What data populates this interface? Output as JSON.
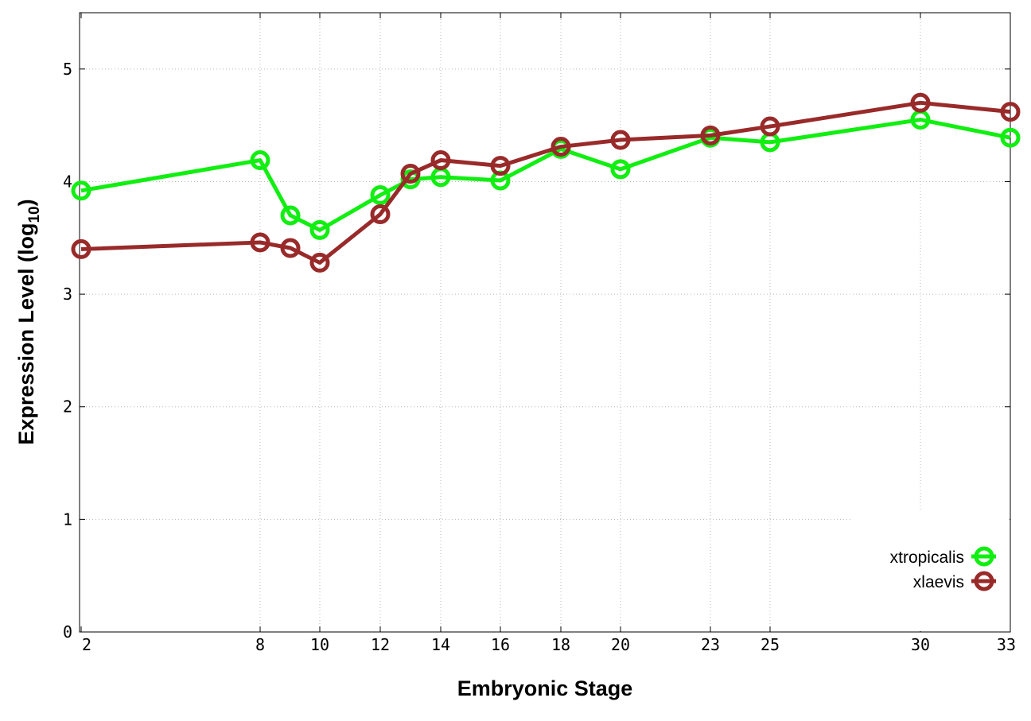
{
  "chart_data": {
    "type": "line",
    "xlabel": "Embryonic Stage",
    "ylabel": "Expression Level (log",
    "ylabel_subscript": "10",
    "ylabel_close": ")",
    "x_ticks": [
      "2",
      "8",
      "10",
      "12",
      "14",
      "16",
      "18",
      "20",
      "23",
      "25",
      "30",
      "33"
    ],
    "y_ticks": [
      "0",
      "1",
      "2",
      "3",
      "4",
      "5"
    ],
    "ylim": [
      0,
      5.5
    ],
    "grid": true,
    "legend_position": "bottom-right",
    "x": [
      "2",
      "8",
      "9",
      "10",
      "12",
      "13",
      "14",
      "16",
      "18",
      "20",
      "23",
      "25",
      "30",
      "33"
    ],
    "series": [
      {
        "name": "xtropicalis",
        "color": "#11ee11",
        "values": [
          3.92,
          4.19,
          3.7,
          3.57,
          3.88,
          4.02,
          4.04,
          4.01,
          4.29,
          4.11,
          4.39,
          4.35,
          4.55,
          4.39
        ]
      },
      {
        "name": "xlaevis",
        "color": "#992a2a",
        "values": [
          3.4,
          3.46,
          3.41,
          3.28,
          3.71,
          4.07,
          4.19,
          4.14,
          4.31,
          4.37,
          4.41,
          4.49,
          4.7,
          4.62
        ]
      }
    ]
  }
}
